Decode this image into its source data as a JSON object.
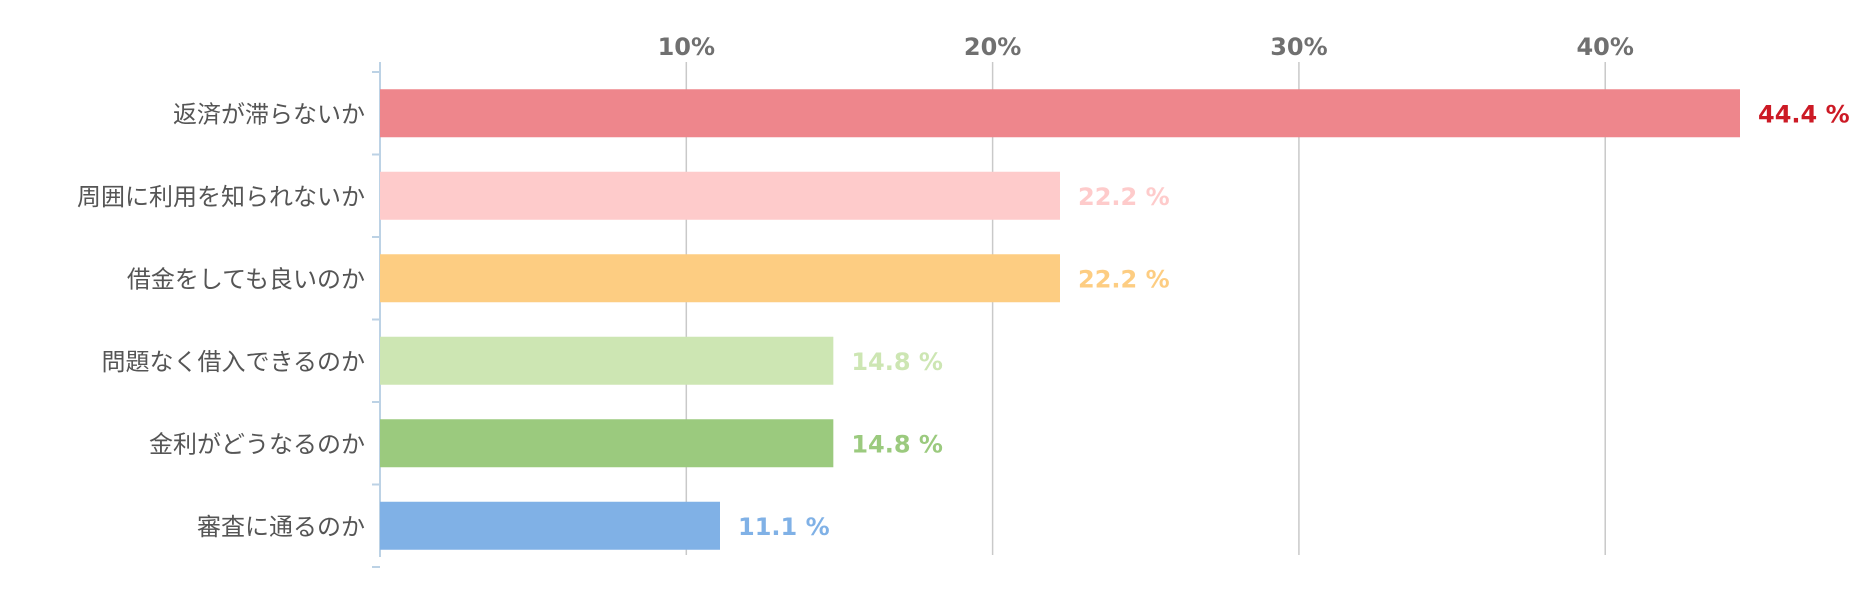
{
  "chart_data": {
    "type": "bar",
    "orientation": "horizontal",
    "categories": [
      "返済が滞らないか",
      "周囲に利用を知られないか",
      "借金をしても良いのか",
      "問題なく借入できるのか",
      "金利がどうなるのか",
      "審査に通るのか"
    ],
    "values": [
      44.4,
      22.2,
      22.2,
      14.8,
      14.8,
      11.1
    ],
    "value_labels": [
      "44.4 %",
      "22.2 %",
      "22.2 %",
      "14.8 %",
      "14.8 %",
      "11.1 %"
    ],
    "bar_colors": [
      "#ee868c",
      "#fecbcb",
      "#fdcd82",
      "#cde6b3",
      "#9bca7e",
      "#80b1e6"
    ],
    "label_colors": [
      "#cc1a25",
      "#fecbcb",
      "#fdcd82",
      "#cde6b3",
      "#9bca7e",
      "#80b1e6"
    ],
    "x_ticks": [
      10,
      20,
      30,
      40
    ],
    "x_tick_labels": [
      "10%",
      "20%",
      "30%",
      "40%"
    ],
    "xlim": [
      0,
      44.4
    ],
    "axis_position": "top",
    "grid": true,
    "legend": "none"
  }
}
